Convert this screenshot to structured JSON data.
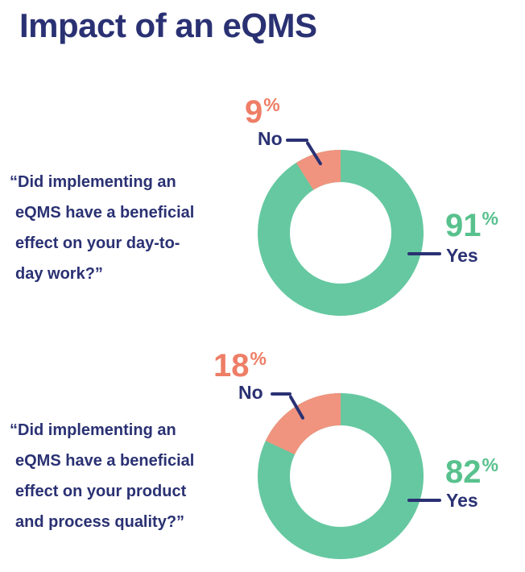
{
  "title": "Impact of an eQMS",
  "labels": {
    "percent": "%"
  },
  "colors": {
    "navy": "#2a3173",
    "donut_green": "#66c8a1",
    "donut_coral": "#f0947f",
    "green_label": "#58c18d",
    "coral_label": "#ee7e66",
    "background": "#ffffff"
  },
  "chart_data": [
    {
      "type": "pie",
      "style": "donut",
      "title": "Impact of an eQMS",
      "question": "“Did implementing an eQMS have a beneficial effect on your day-to-day work?”",
      "question_lines": [
        "“Did implementing an",
        "eQMS have a beneficial",
        "effect on your day-to-",
        "day work?”"
      ],
      "slices": [
        {
          "label": "Yes",
          "value": 91,
          "color_key": "donut_green"
        },
        {
          "label": "No",
          "value": 9,
          "color_key": "donut_coral"
        }
      ],
      "legend_position": "callout-labels",
      "start": "no-slice-ends-at-12-o-clock"
    },
    {
      "type": "pie",
      "style": "donut",
      "title": "Impact of an eQMS",
      "question": "“Did implementing an eQMS have a beneficial effect on your product and process quality?”",
      "question_lines": [
        "“Did implementing an",
        "eQMS have a beneficial",
        "effect on your product",
        "and process quality?”"
      ],
      "slices": [
        {
          "label": "Yes",
          "value": 82,
          "color_key": "donut_green"
        },
        {
          "label": "No",
          "value": 18,
          "color_key": "donut_coral"
        }
      ],
      "legend_position": "callout-labels",
      "start": "no-slice-ends-at-12-o-clock"
    }
  ]
}
